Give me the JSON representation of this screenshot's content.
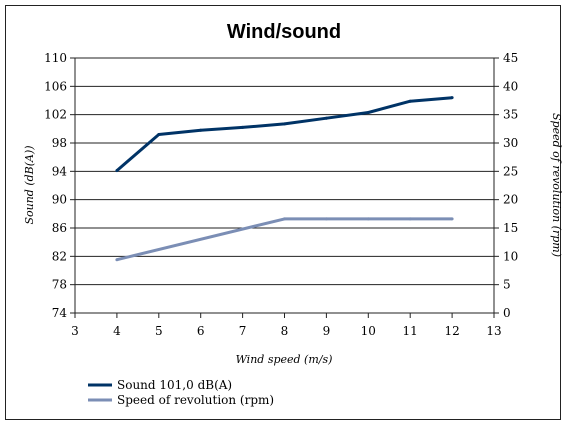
{
  "chart_data": {
    "type": "line",
    "title": "Wind/sound",
    "xlabel": "Wind speed (m/s)",
    "ylabel_left": "Sound (dB(A))",
    "ylabel_right": "Speed of revolution (rpm)",
    "xlim": [
      3,
      13
    ],
    "x_ticks": [
      "3",
      "4",
      "5",
      "6",
      "7",
      "8",
      "9",
      "10",
      "11",
      "12",
      "13"
    ],
    "ylim_left": [
      74,
      110
    ],
    "y_ticks_left": [
      "74",
      "78",
      "82",
      "86",
      "90",
      "94",
      "98",
      "102",
      "106",
      "110"
    ],
    "ylim_right": [
      0,
      45
    ],
    "y_ticks_right": [
      "0",
      "5",
      "10",
      "15",
      "20",
      "25",
      "30",
      "35",
      "40",
      "45"
    ],
    "grid": "horizontal",
    "legend_position": "bottom-left",
    "series": [
      {
        "name": "Sound 101,0 dB(A)",
        "axis": "left",
        "color": "#003366",
        "x": [
          4,
          5,
          6,
          7,
          8,
          9,
          10,
          11,
          12
        ],
        "y": [
          94.1,
          99.2,
          99.8,
          100.2,
          100.7,
          101.5,
          102.3,
          103.9,
          104.4
        ]
      },
      {
        "name": "Speed of revolution (rpm)",
        "axis": "right",
        "color": "#7B8EB5",
        "x": [
          4,
          8,
          9,
          10,
          11,
          12
        ],
        "y": [
          9.4,
          16.6,
          16.6,
          16.6,
          16.6,
          16.6
        ]
      }
    ]
  }
}
